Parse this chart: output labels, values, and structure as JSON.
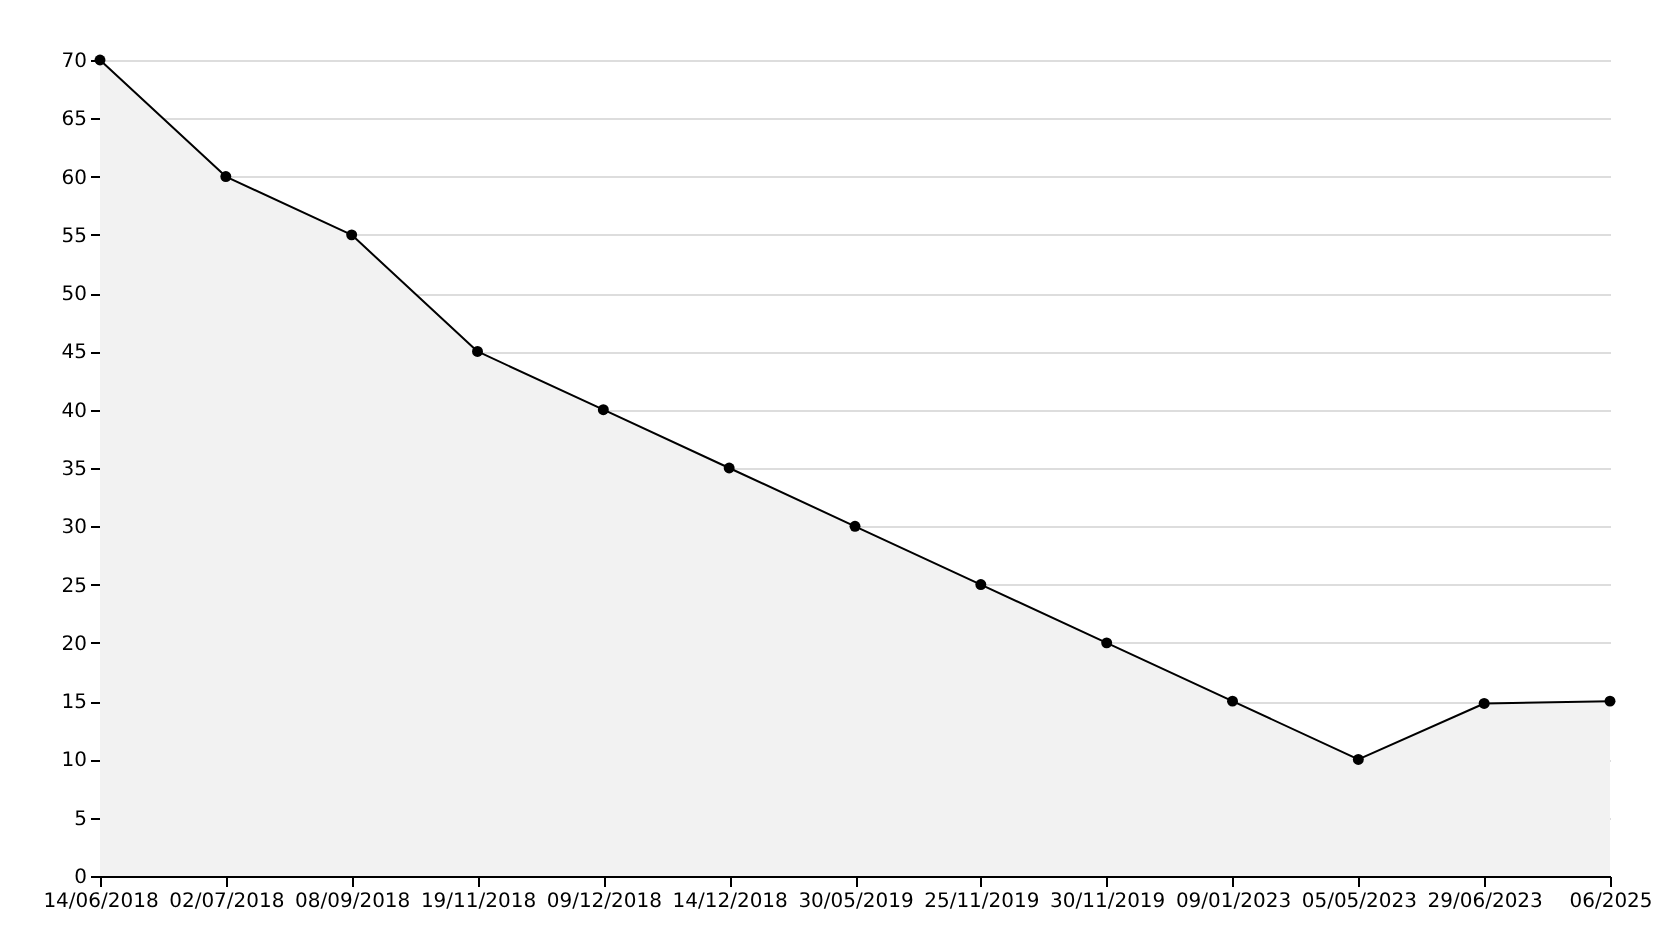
{
  "chart_data": {
    "type": "area",
    "categories": [
      "14/06/2018",
      "02/07/2018",
      "08/09/2018",
      "19/11/2018",
      "09/12/2018",
      "14/12/2018",
      "30/05/2019",
      "25/11/2019",
      "30/11/2019",
      "09/01/2023",
      "05/05/2023",
      "29/06/2023",
      "06/2025"
    ],
    "series": [
      {
        "color": "#000000",
        "values": [
          70,
          60,
          55,
          45,
          40,
          35,
          30,
          25,
          20,
          15,
          10,
          14.8,
          15
        ]
      }
    ],
    "ylim": [
      0,
      70
    ],
    "yticks": [
      0,
      5,
      10,
      15,
      20,
      25,
      30,
      35,
      40,
      45,
      50,
      55,
      60,
      65,
      70
    ],
    "grid": "y",
    "marker": "circle"
  }
}
